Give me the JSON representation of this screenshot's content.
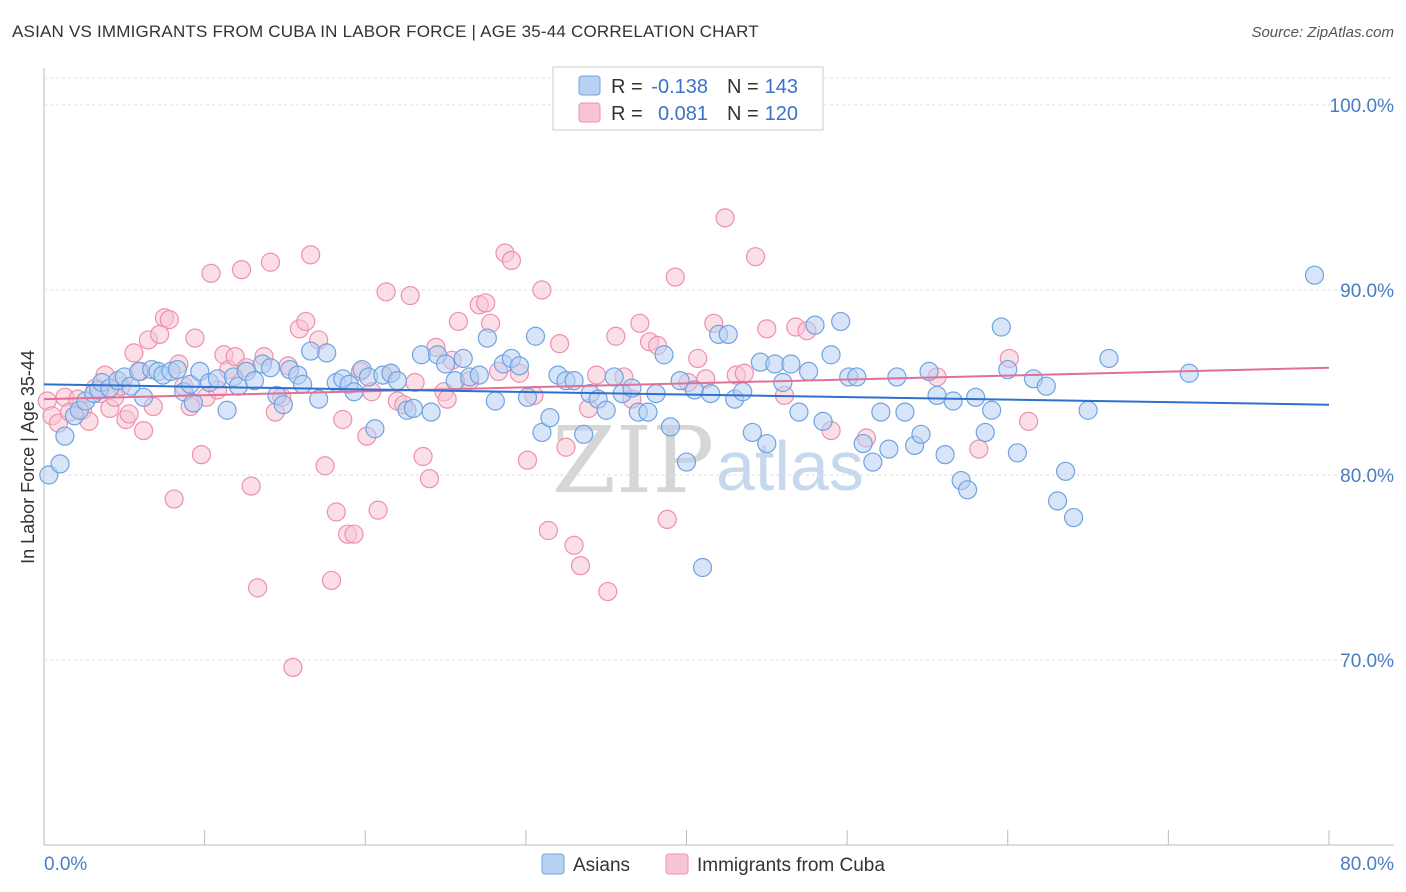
{
  "title": "ASIAN VS IMMIGRANTS FROM CUBA IN LABOR FORCE | AGE 35-44 CORRELATION CHART",
  "source": "Source: ZipAtlas.com",
  "watermark": {
    "zip": "ZIP",
    "atlas": "atlas"
  },
  "colors": {
    "blue": "#6fa3e0",
    "blue_fill": "#b8d0f2",
    "blue_line": "#2f6fd0",
    "pink": "#ee8fae",
    "pink_fill": "#f7c4d4",
    "pink_line": "#e0709a"
  },
  "legend": {
    "r_label": "R =",
    "n_label": "N =",
    "rows": [
      {
        "r": "-0.138",
        "n": "143"
      },
      {
        "r": "0.081",
        "n": "120"
      }
    ]
  },
  "chart_data": {
    "type": "scatter",
    "title": "ASIAN VS IMMIGRANTS FROM CUBA IN LABOR FORCE | AGE 35-44 CORRELATION CHART",
    "xlabel": "",
    "ylabel": "In Labor Force | Age 35-44",
    "xlim": [
      0,
      80
    ],
    "ylim": [
      60,
      102
    ],
    "x_tick_labels": [
      "0.0%",
      "80.0%"
    ],
    "y_ticks": [
      70,
      80,
      90,
      100
    ],
    "y_tick_labels": [
      "70.0%",
      "80.0%",
      "90.0%",
      "100.0%"
    ],
    "grid": true,
    "legend_position": "top-center",
    "series": [
      {
        "name": "Asians",
        "r": -0.138,
        "n": 143,
        "trend": {
          "x": [
            0,
            80
          ],
          "y": [
            84.9,
            83.8
          ]
        },
        "points": [
          [
            0.3,
            80
          ],
          [
            1,
            80.6
          ],
          [
            1.3,
            82.1
          ],
          [
            1.9,
            83.2
          ],
          [
            2.2,
            83.5
          ],
          [
            2.6,
            84
          ],
          [
            3.1,
            84.4
          ],
          [
            3.4,
            84.6
          ],
          [
            3.6,
            85
          ],
          [
            4.1,
            84.7
          ],
          [
            4.6,
            85.1
          ],
          [
            5,
            85.3
          ],
          [
            5.4,
            84.8
          ],
          [
            5.9,
            85.6
          ],
          [
            6.2,
            84.2
          ],
          [
            6.7,
            85.7
          ],
          [
            7.1,
            85.6
          ],
          [
            7.4,
            85.4
          ],
          [
            7.9,
            85.6
          ],
          [
            8.3,
            85.7
          ],
          [
            8.7,
            84.5
          ],
          [
            9.1,
            84.9
          ],
          [
            9.3,
            83.9
          ],
          [
            9.7,
            85.6
          ],
          [
            10.3,
            85
          ],
          [
            10.8,
            85.2
          ],
          [
            11.4,
            83.5
          ],
          [
            11.8,
            85.3
          ],
          [
            12.1,
            84.8
          ],
          [
            12.6,
            85.6
          ],
          [
            13.1,
            85.1
          ],
          [
            13.6,
            86
          ],
          [
            14.1,
            85.8
          ],
          [
            14.5,
            84.3
          ],
          [
            14.9,
            83.8
          ],
          [
            15.3,
            85.7
          ],
          [
            15.8,
            85.4
          ],
          [
            16.1,
            84.9
          ],
          [
            16.6,
            86.7
          ],
          [
            17.1,
            84.1
          ],
          [
            17.6,
            86.6
          ],
          [
            18.2,
            85
          ],
          [
            18.6,
            85.2
          ],
          [
            19,
            84.9
          ],
          [
            19.3,
            84.5
          ],
          [
            19.8,
            85.7
          ],
          [
            20.2,
            85.3
          ],
          [
            20.6,
            82.5
          ],
          [
            21.1,
            85.4
          ],
          [
            21.6,
            85.5
          ],
          [
            22,
            85.1
          ],
          [
            22.6,
            83.5
          ],
          [
            23,
            83.6
          ],
          [
            23.5,
            86.5
          ],
          [
            24.1,
            83.4
          ],
          [
            24.5,
            86.5
          ],
          [
            25,
            86
          ],
          [
            25.6,
            85.1
          ],
          [
            26.1,
            86.3
          ],
          [
            26.5,
            85.3
          ],
          [
            27.1,
            85.4
          ],
          [
            27.6,
            87.4
          ],
          [
            28.1,
            84
          ],
          [
            28.6,
            86
          ],
          [
            29.1,
            86.3
          ],
          [
            29.6,
            85.9
          ],
          [
            30.1,
            84.2
          ],
          [
            30.6,
            87.5
          ],
          [
            31,
            82.3
          ],
          [
            31.5,
            83.1
          ],
          [
            32,
            85.4
          ],
          [
            32.5,
            85.1
          ],
          [
            33,
            85.1
          ],
          [
            33.6,
            82.2
          ],
          [
            34,
            84.4
          ],
          [
            34.5,
            84.1
          ],
          [
            35,
            83.5
          ],
          [
            35.5,
            85.3
          ],
          [
            36,
            84.4
          ],
          [
            36.6,
            84.7
          ],
          [
            37,
            83.4
          ],
          [
            37.6,
            83.4
          ],
          [
            38.1,
            84.4
          ],
          [
            38.6,
            86.5
          ],
          [
            39,
            82.6
          ],
          [
            39.6,
            85.1
          ],
          [
            40,
            80.7
          ],
          [
            40.5,
            84.6
          ],
          [
            41,
            75
          ],
          [
            41.5,
            84.4
          ],
          [
            42,
            87.6
          ],
          [
            42.6,
            87.6
          ],
          [
            43,
            84.1
          ],
          [
            43.5,
            84.5
          ],
          [
            44.1,
            82.3
          ],
          [
            44.6,
            86.1
          ],
          [
            45,
            81.7
          ],
          [
            45.5,
            86
          ],
          [
            46,
            85
          ],
          [
            46.5,
            86
          ],
          [
            47,
            83.4
          ],
          [
            47.6,
            85.6
          ],
          [
            48,
            88.1
          ],
          [
            48.5,
            82.9
          ],
          [
            49,
            86.5
          ],
          [
            49.6,
            88.3
          ],
          [
            50.1,
            85.3
          ],
          [
            50.6,
            85.3
          ],
          [
            51,
            81.7
          ],
          [
            51.6,
            80.7
          ],
          [
            52.1,
            83.4
          ],
          [
            52.6,
            81.4
          ],
          [
            53.1,
            85.3
          ],
          [
            53.6,
            83.4
          ],
          [
            54.2,
            81.6
          ],
          [
            54.6,
            82.2
          ],
          [
            55.1,
            85.6
          ],
          [
            55.6,
            84.3
          ],
          [
            56.1,
            81.1
          ],
          [
            56.6,
            84
          ],
          [
            57.1,
            79.7
          ],
          [
            57.5,
            79.2
          ],
          [
            58,
            84.2
          ],
          [
            58.6,
            82.3
          ],
          [
            59,
            83.5
          ],
          [
            59.6,
            88
          ],
          [
            60,
            85.7
          ],
          [
            60.6,
            81.2
          ],
          [
            61.6,
            85.2
          ],
          [
            62.4,
            84.8
          ],
          [
            63.1,
            78.6
          ],
          [
            63.6,
            80.2
          ],
          [
            64.1,
            77.7
          ],
          [
            65,
            83.5
          ],
          [
            66.3,
            86.3
          ],
          [
            71.3,
            85.5
          ],
          [
            79.1,
            90.8
          ]
        ]
      },
      {
        "name": "Immigrants from Cuba",
        "r": 0.081,
        "n": 120,
        "trend": {
          "x": [
            0,
            80
          ],
          "y": [
            84.1,
            85.8
          ]
        },
        "points": [
          [
            0.2,
            84
          ],
          [
            0.5,
            83.2
          ],
          [
            0.9,
            82.8
          ],
          [
            1.3,
            84.2
          ],
          [
            1.6,
            83.4
          ],
          [
            2.1,
            84.1
          ],
          [
            2.4,
            83.5
          ],
          [
            2.8,
            82.9
          ],
          [
            3.2,
            84.7
          ],
          [
            3.5,
            84.4
          ],
          [
            3.8,
            85.4
          ],
          [
            4.1,
            83.6
          ],
          [
            4.4,
            84.2
          ],
          [
            4.8,
            84.8
          ],
          [
            5.1,
            83
          ],
          [
            5.3,
            83.3
          ],
          [
            5.6,
            86.6
          ],
          [
            6,
            85.6
          ],
          [
            6.2,
            82.4
          ],
          [
            6.5,
            87.3
          ],
          [
            6.8,
            83.7
          ],
          [
            7.2,
            87.6
          ],
          [
            7.5,
            88.5
          ],
          [
            7.8,
            88.4
          ],
          [
            8.1,
            78.7
          ],
          [
            8.4,
            86
          ],
          [
            8.7,
            84.8
          ],
          [
            9.1,
            83.7
          ],
          [
            9.4,
            87.4
          ],
          [
            9.8,
            81.1
          ],
          [
            10.1,
            84.2
          ],
          [
            10.4,
            90.9
          ],
          [
            10.8,
            84.6
          ],
          [
            11.2,
            86.5
          ],
          [
            11.5,
            85.7
          ],
          [
            11.9,
            86.4
          ],
          [
            12.3,
            91.1
          ],
          [
            12.6,
            85.8
          ],
          [
            12.9,
            79.4
          ],
          [
            13.3,
            73.9
          ],
          [
            13.7,
            86.4
          ],
          [
            14.1,
            91.5
          ],
          [
            14.4,
            83.4
          ],
          [
            14.8,
            84.2
          ],
          [
            15.2,
            85.9
          ],
          [
            15.5,
            69.6
          ],
          [
            15.9,
            87.9
          ],
          [
            16.3,
            88.3
          ],
          [
            16.6,
            91.9
          ],
          [
            17.1,
            87.3
          ],
          [
            17.5,
            80.5
          ],
          [
            17.9,
            74.3
          ],
          [
            18.2,
            78
          ],
          [
            18.6,
            83
          ],
          [
            18.9,
            76.8
          ],
          [
            19.3,
            76.8
          ],
          [
            19.7,
            85.6
          ],
          [
            20.1,
            82.1
          ],
          [
            20.4,
            84.5
          ],
          [
            20.8,
            78.1
          ],
          [
            21.3,
            89.9
          ],
          [
            21.6,
            85.5
          ],
          [
            22,
            84
          ],
          [
            22.4,
            83.8
          ],
          [
            22.8,
            89.7
          ],
          [
            23.1,
            85
          ],
          [
            23.6,
            81
          ],
          [
            24,
            79.8
          ],
          [
            24.4,
            86.9
          ],
          [
            24.9,
            84.5
          ],
          [
            25.1,
            84.1
          ],
          [
            25.4,
            86.2
          ],
          [
            25.8,
            88.3
          ],
          [
            26.5,
            85.1
          ],
          [
            27.1,
            89.2
          ],
          [
            27.5,
            89.3
          ],
          [
            27.8,
            88.2
          ],
          [
            28.3,
            85.6
          ],
          [
            28.7,
            92
          ],
          [
            29.1,
            91.6
          ],
          [
            29.6,
            85.5
          ],
          [
            30.1,
            80.8
          ],
          [
            30.5,
            84.3
          ],
          [
            31,
            90
          ],
          [
            31.4,
            77
          ],
          [
            32.1,
            87.1
          ],
          [
            32.5,
            81.5
          ],
          [
            33,
            76.2
          ],
          [
            33.4,
            75.1
          ],
          [
            33.9,
            83.6
          ],
          [
            34.4,
            85.4
          ],
          [
            35.1,
            73.7
          ],
          [
            35.6,
            87.5
          ],
          [
            36.1,
            85.3
          ],
          [
            36.6,
            84.1
          ],
          [
            37.1,
            88.2
          ],
          [
            37.7,
            87.2
          ],
          [
            38.2,
            87
          ],
          [
            38.8,
            77.6
          ],
          [
            39.3,
            90.7
          ],
          [
            40.1,
            85
          ],
          [
            40.7,
            86.3
          ],
          [
            41.2,
            85.2
          ],
          [
            41.7,
            88.2
          ],
          [
            42.4,
            93.9
          ],
          [
            43.1,
            85.4
          ],
          [
            43.6,
            85.5
          ],
          [
            44.3,
            91.8
          ],
          [
            45,
            87.9
          ],
          [
            46.1,
            84.3
          ],
          [
            46.8,
            88
          ],
          [
            47.5,
            87.8
          ],
          [
            49,
            82.4
          ],
          [
            51.2,
            82
          ],
          [
            55.6,
            85.3
          ],
          [
            58.2,
            81.4
          ],
          [
            60.1,
            86.3
          ],
          [
            61.3,
            82.9
          ]
        ]
      }
    ]
  }
}
